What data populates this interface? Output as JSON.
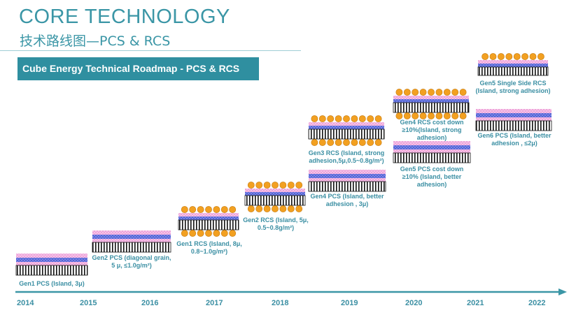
{
  "header": {
    "title": "CORE TECHNOLOGY",
    "subtitle": "技术路线图—PCS & RCS",
    "banner": "Cube Energy Technical Roadmap - PCS & RCS"
  },
  "timeline": {
    "years": [
      "2014",
      "2015",
      "2016",
      "2017",
      "2018",
      "2019",
      "2020",
      "2021",
      "2022"
    ]
  },
  "colors": {
    "accent": "#3b96a6",
    "banner_bg": "#2f8fa0",
    "arrow": "#3b96a6",
    "pink_layer": "#f0a6d9",
    "blue_layer": "#5c6fd8",
    "dots": "#f2a021"
  },
  "products": [
    {
      "id": "gen1-pcs",
      "label_lines": [
        "Gen1 PCS (Island, 3μ)"
      ],
      "type": "PCS"
    },
    {
      "id": "gen2-pcs",
      "label_lines": [
        "Gen2 PCS (diagonal grain,",
        "5 μ, ≤1.0g/m²)"
      ],
      "type": "PCS"
    },
    {
      "id": "gen1-rcs",
      "label_lines": [
        "Gen1 RCS (Island, 8μ,",
        "0.8~1.0g/m²)"
      ],
      "type": "RCS"
    },
    {
      "id": "gen2-rcs",
      "label_lines": [
        "Gen2 RCS (Island, 5μ,",
        "0.5~0.8g/m²)"
      ],
      "type": "RCS"
    },
    {
      "id": "gen3-rcs",
      "label_lines": [
        "Gen3 RCS (Island, strong",
        "adhesion,5μ,0.5~0.8g/m²)"
      ],
      "type": "RCS"
    },
    {
      "id": "gen4-pcs",
      "label_lines": [
        "Gen4 PCS (Island, better",
        "adhesion , 3μ)"
      ],
      "type": "PCS"
    },
    {
      "id": "gen4-rcs",
      "label_lines": [
        "Gen4 RCS cost down",
        "≥10%(Island, strong",
        "adhesion)"
      ],
      "type": "RCS"
    },
    {
      "id": "gen5-pcs",
      "label_lines": [
        "Gen5 PCS cost down",
        "≥10% (Island, better",
        "adhesion)"
      ],
      "type": "PCS"
    },
    {
      "id": "gen5-rcs",
      "label_lines": [
        "Gen5 Single Side RCS",
        "(Island, strong adhesion)"
      ],
      "type": "RCS-single"
    },
    {
      "id": "gen6-pcs",
      "label_lines": [
        "Gen6 PCS (Island, better",
        "adhesion , ≤2μ)"
      ],
      "type": "PCS"
    }
  ]
}
